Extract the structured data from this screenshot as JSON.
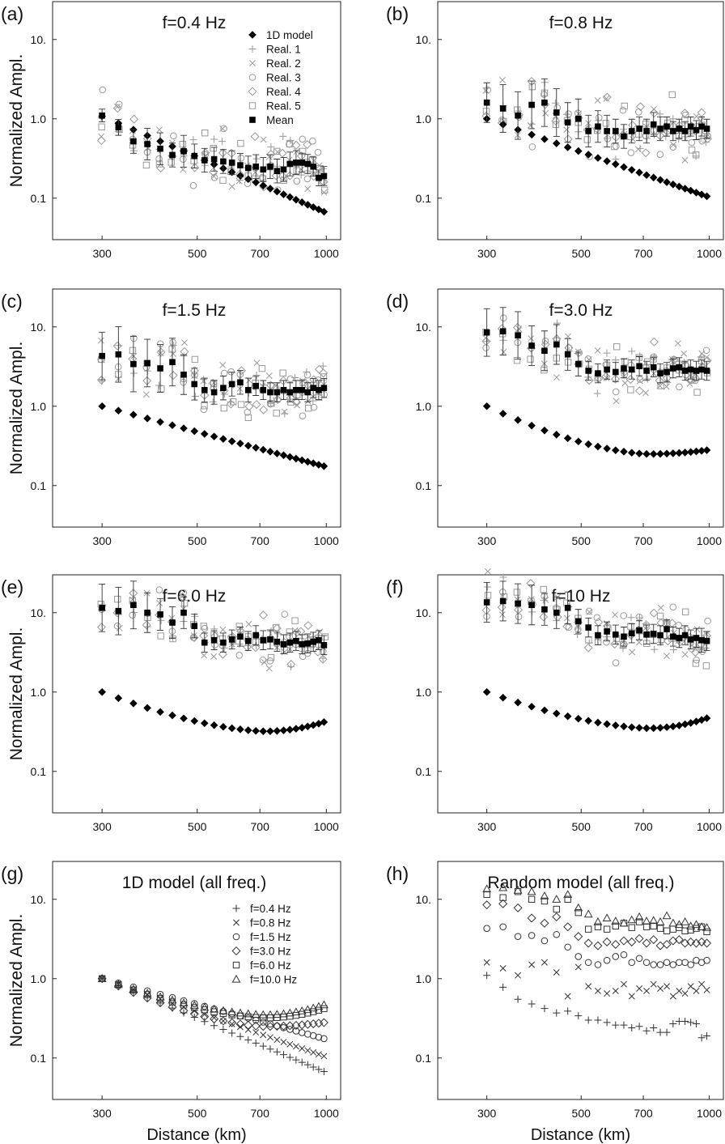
{
  "figure": {
    "ylabel": "Normalized Ampl.",
    "xlabel": "Distance (km)",
    "yticks": [
      "0.1",
      "1.0",
      "10."
    ],
    "xticks": [
      "300",
      "500",
      "700",
      "1000"
    ]
  },
  "chart_data": [
    {
      "type": "scatter",
      "panel_label": "(a)",
      "title": "f=0.4 Hz",
      "xscale": "log",
      "yscale": "log",
      "xlim": [
        230,
        1080
      ],
      "ylim": [
        0.03,
        30
      ],
      "legend": {
        "placement": "top-right",
        "entries": [
          {
            "label": "1D model",
            "marker": "filled-diamond"
          },
          {
            "label": "Real. 1",
            "marker": "plus"
          },
          {
            "label": "Real. 2",
            "marker": "cross"
          },
          {
            "label": "Real. 3",
            "marker": "circle"
          },
          {
            "label": "Real. 4",
            "marker": "diamond"
          },
          {
            "label": "Real. 5",
            "marker": "square"
          },
          {
            "label": "Mean",
            "marker": "filled-square"
          }
        ]
      },
      "series": [
        {
          "name": "1D model",
          "model": [
            1.08,
            0.067
          ]
        },
        {
          "name": "Mean",
          "values": [
            1.1,
            0.78,
            0.52,
            0.48,
            0.42,
            0.35,
            0.39,
            0.34,
            0.3,
            0.31,
            0.29,
            0.28,
            0.26,
            0.24,
            0.25,
            0.23,
            0.25,
            0.22,
            0.23,
            0.27,
            0.28,
            0.28,
            0.27,
            0.25,
            0.18,
            0.19
          ],
          "err": [
            0.08,
            0.1,
            0.15,
            0.2,
            0.2,
            0.15,
            0.2,
            0.15,
            0.15,
            0.15,
            0.15,
            0.15,
            0.15,
            0.15,
            0.15,
            0.15,
            0.15,
            0.15,
            0.15,
            0.15,
            0.15,
            0.12,
            0.12,
            0.12,
            0.1,
            0.12
          ]
        },
        {
          "name": "Real. 1",
          "spread": 0.3
        },
        {
          "name": "Real. 2",
          "spread": 0.3
        },
        {
          "name": "Real. 3",
          "spread": 0.35
        },
        {
          "name": "Real. 4",
          "spread": 0.3
        },
        {
          "name": "Real. 5",
          "spread": 0.3
        }
      ]
    },
    {
      "type": "scatter",
      "panel_label": "(b)",
      "title": "f=0.8 Hz",
      "xscale": "log",
      "yscale": "log",
      "xlim": [
        230,
        1080
      ],
      "ylim": [
        0.03,
        30
      ],
      "series": [
        {
          "name": "1D model",
          "model": [
            1.0,
            0.105
          ]
        },
        {
          "name": "Mean",
          "values": [
            1.6,
            1.35,
            1.1,
            1.5,
            1.6,
            1.2,
            0.9,
            1.0,
            0.7,
            0.8,
            0.7,
            0.7,
            0.6,
            0.7,
            0.75,
            0.7,
            0.85,
            0.75,
            0.8,
            0.7,
            0.75,
            0.7,
            0.8,
            0.72,
            0.8,
            0.75
          ],
          "err": [
            0.25,
            0.3,
            0.3,
            0.3,
            0.3,
            0.3,
            0.25,
            0.25,
            0.2,
            0.2,
            0.2,
            0.15,
            0.15,
            0.15,
            0.15,
            0.15,
            0.15,
            0.15,
            0.12,
            0.12,
            0.12,
            0.12,
            0.12,
            0.12,
            0.12,
            0.12
          ]
        },
        {
          "name": "Real. 1",
          "spread": 0.35
        },
        {
          "name": "Real. 2",
          "spread": 0.35
        },
        {
          "name": "Real. 3",
          "spread": 0.4
        },
        {
          "name": "Real. 4",
          "spread": 0.35
        },
        {
          "name": "Real. 5",
          "spread": 0.35
        }
      ]
    },
    {
      "type": "scatter",
      "panel_label": "(c)",
      "title": "f=1.5 Hz",
      "xscale": "log",
      "yscale": "log",
      "xlim": [
        230,
        1080
      ],
      "ylim": [
        0.03,
        30
      ],
      "series": [
        {
          "name": "1D model",
          "model": [
            1.0,
            0.175
          ]
        },
        {
          "name": "Mean",
          "values": [
            4.3,
            4.5,
            3.4,
            3.5,
            3.0,
            3.6,
            2.5,
            1.9,
            1.6,
            1.5,
            1.7,
            1.9,
            2.0,
            1.6,
            1.8,
            1.6,
            1.5,
            1.5,
            1.6,
            1.5,
            1.6,
            1.6,
            1.5,
            1.7,
            1.6,
            1.7
          ],
          "err": [
            0.3,
            0.35,
            0.35,
            0.3,
            0.3,
            0.3,
            0.25,
            0.2,
            0.15,
            0.15,
            0.15,
            0.15,
            0.15,
            0.15,
            0.12,
            0.12,
            0.12,
            0.12,
            0.12,
            0.12,
            0.12,
            0.12,
            0.12,
            0.12,
            0.12,
            0.12
          ]
        },
        {
          "name": "Real. 1",
          "spread": 0.3
        },
        {
          "name": "Real. 2",
          "spread": 0.3
        },
        {
          "name": "Real. 3",
          "spread": 0.35
        },
        {
          "name": "Real. 4",
          "spread": 0.3
        },
        {
          "name": "Real. 5",
          "spread": 0.3
        }
      ]
    },
    {
      "type": "scatter",
      "panel_label": "(d)",
      "title": "f=3.0 Hz",
      "xscale": "log",
      "yscale": "log",
      "xlim": [
        230,
        1080
      ],
      "ylim": [
        0.03,
        30
      ],
      "series": [
        {
          "name": "1D model",
          "model": [
            1.0,
            0.25,
            0.28
          ]
        },
        {
          "name": "Mean",
          "values": [
            8.5,
            8.8,
            7.8,
            5.8,
            5.0,
            6.0,
            4.5,
            3.4,
            2.8,
            2.6,
            2.9,
            2.7,
            3.0,
            2.9,
            3.2,
            2.8,
            3.1,
            2.6,
            2.7,
            3.0,
            3.1,
            2.8,
            2.9,
            2.8,
            2.9,
            2.8
          ],
          "err": [
            0.3,
            0.3,
            0.3,
            0.25,
            0.25,
            0.25,
            0.2,
            0.15,
            0.12,
            0.12,
            0.12,
            0.12,
            0.12,
            0.12,
            0.12,
            0.12,
            0.12,
            0.12,
            0.12,
            0.12,
            0.12,
            0.12,
            0.12,
            0.12,
            0.12,
            0.12
          ]
        },
        {
          "name": "Real. 1",
          "spread": 0.25
        },
        {
          "name": "Real. 2",
          "spread": 0.3
        },
        {
          "name": "Real. 3",
          "spread": 0.3
        },
        {
          "name": "Real. 4",
          "spread": 0.25
        },
        {
          "name": "Real. 5",
          "spread": 0.25
        }
      ]
    },
    {
      "type": "scatter",
      "panel_label": "(e)",
      "title": "f=6.0 Hz",
      "xscale": "log",
      "yscale": "log",
      "xlim": [
        230,
        1080
      ],
      "ylim": [
        0.03,
        30
      ],
      "series": [
        {
          "name": "1D model",
          "model": [
            1.0,
            0.32,
            0.42
          ]
        },
        {
          "name": "Mean",
          "values": [
            11.5,
            10.5,
            12.5,
            10.0,
            9.5,
            7.5,
            10.0,
            6.8,
            4.2,
            4.5,
            4.2,
            4.6,
            5.0,
            4.4,
            5.2,
            4.5,
            4.6,
            4.3,
            4.0,
            4.2,
            4.4,
            4.0,
            4.1,
            4.3,
            4.5,
            3.9
          ],
          "err": [
            0.3,
            0.3,
            0.3,
            0.25,
            0.2,
            0.2,
            0.2,
            0.15,
            0.12,
            0.12,
            0.12,
            0.12,
            0.12,
            0.12,
            0.12,
            0.12,
            0.12,
            0.12,
            0.12,
            0.12,
            0.12,
            0.12,
            0.12,
            0.12,
            0.12,
            0.12
          ]
        },
        {
          "name": "Real. 1",
          "spread": 0.25
        },
        {
          "name": "Real. 2",
          "spread": 0.3
        },
        {
          "name": "Real. 3",
          "spread": 0.3
        },
        {
          "name": "Real. 4",
          "spread": 0.25
        },
        {
          "name": "Real. 5",
          "spread": 0.25
        }
      ]
    },
    {
      "type": "scatter",
      "panel_label": "(f)",
      "title": "f=10 Hz",
      "xscale": "log",
      "yscale": "log",
      "xlim": [
        230,
        1080
      ],
      "ylim": [
        0.03,
        30
      ],
      "series": [
        {
          "name": "1D model",
          "model": [
            1.0,
            0.35,
            0.47
          ]
        },
        {
          "name": "Mean",
          "values": [
            13.5,
            14.0,
            13.0,
            12.5,
            11.0,
            10.0,
            11.5,
            7.8,
            6.5,
            5.2,
            5.8,
            5.3,
            5.0,
            5.5,
            6.0,
            5.3,
            5.4,
            5.2,
            6.2,
            5.0,
            4.8,
            5.2,
            4.6,
            4.8,
            4.5,
            4.4
          ],
          "err": [
            0.25,
            0.25,
            0.25,
            0.25,
            0.2,
            0.2,
            0.2,
            0.15,
            0.12,
            0.12,
            0.12,
            0.12,
            0.12,
            0.12,
            0.12,
            0.12,
            0.12,
            0.12,
            0.12,
            0.12,
            0.12,
            0.12,
            0.12,
            0.12,
            0.15,
            0.12
          ]
        },
        {
          "name": "Real. 1",
          "spread": 0.25
        },
        {
          "name": "Real. 2",
          "spread": 0.3
        },
        {
          "name": "Real. 3",
          "spread": 0.3
        },
        {
          "name": "Real. 4",
          "spread": 0.25
        },
        {
          "name": "Real. 5",
          "spread": 0.25
        }
      ]
    },
    {
      "type": "scatter",
      "panel_label": "(g)",
      "title": "1D model (all freq.)",
      "xscale": "log",
      "yscale": "log",
      "xlim": [
        230,
        1080
      ],
      "ylim": [
        0.03,
        30
      ],
      "legend": {
        "placement": "top-right",
        "entries": [
          {
            "label": "f=0.4 Hz",
            "marker": "plus"
          },
          {
            "label": "f=0.8 Hz",
            "marker": "cross"
          },
          {
            "label": "f=1.5 Hz",
            "marker": "circle"
          },
          {
            "label": "f=3.0 Hz",
            "marker": "diamond"
          },
          {
            "label": "f=6.0 Hz",
            "marker": "square"
          },
          {
            "label": "f=10.0 Hz",
            "marker": "triangle"
          }
        ]
      },
      "series": [
        {
          "name": "f=0.4 Hz",
          "model": [
            1.0,
            0.067
          ]
        },
        {
          "name": "f=0.8 Hz",
          "model": [
            1.0,
            0.105
          ]
        },
        {
          "name": "f=1.5 Hz",
          "model": [
            1.0,
            0.175
          ]
        },
        {
          "name": "f=3.0 Hz",
          "model": [
            1.0,
            0.25,
            0.28
          ]
        },
        {
          "name": "f=6.0 Hz",
          "model": [
            1.0,
            0.32,
            0.42
          ]
        },
        {
          "name": "f=10.0 Hz",
          "model": [
            1.0,
            0.35,
            0.47
          ]
        }
      ]
    },
    {
      "type": "scatter",
      "panel_label": "(h)",
      "title": "Random model (all freq.)",
      "xscale": "log",
      "yscale": "log",
      "xlim": [
        230,
        1080
      ],
      "ylim": [
        0.03,
        30
      ],
      "series": [
        {
          "name": "f=0.4 Hz",
          "values": [
            1.1,
            0.78,
            0.55,
            0.48,
            0.42,
            0.37,
            0.39,
            0.34,
            0.3,
            0.3,
            0.28,
            0.26,
            0.26,
            0.24,
            0.25,
            0.22,
            0.24,
            0.21,
            0.21,
            0.27,
            0.29,
            0.29,
            0.28,
            0.27,
            0.18,
            0.19
          ]
        },
        {
          "name": "f=0.8 Hz",
          "values": [
            1.6,
            1.35,
            1.1,
            1.5,
            1.6,
            1.2,
            0.6,
            1.4,
            0.8,
            0.7,
            0.65,
            0.7,
            0.85,
            0.6,
            0.75,
            0.7,
            0.85,
            0.75,
            0.8,
            0.6,
            0.7,
            0.65,
            0.8,
            0.7,
            0.85,
            0.72
          ]
        },
        {
          "name": "f=1.5 Hz",
          "values": [
            4.3,
            4.5,
            3.4,
            3.5,
            3.0,
            3.6,
            2.5,
            1.9,
            1.6,
            1.5,
            1.7,
            1.9,
            2.0,
            1.6,
            1.8,
            1.6,
            1.5,
            1.5,
            1.6,
            1.5,
            1.6,
            1.6,
            1.5,
            1.7,
            1.6,
            1.7
          ]
        },
        {
          "name": "f=3.0 Hz",
          "values": [
            8.5,
            8.8,
            7.8,
            5.8,
            5.0,
            6.0,
            4.5,
            3.4,
            2.8,
            2.6,
            2.9,
            2.7,
            3.0,
            2.9,
            3.2,
            2.8,
            3.1,
            2.6,
            2.7,
            3.0,
            3.1,
            2.8,
            2.9,
            2.8,
            2.9,
            2.8
          ]
        },
        {
          "name": "f=6.0 Hz",
          "values": [
            11.5,
            10.5,
            12.5,
            10.0,
            9.5,
            7.5,
            10.0,
            6.8,
            4.2,
            4.5,
            4.2,
            4.6,
            5.0,
            4.4,
            5.2,
            4.5,
            4.6,
            4.3,
            4.0,
            4.2,
            4.4,
            4.0,
            4.1,
            4.3,
            4.5,
            3.9
          ]
        },
        {
          "name": "f=10.0 Hz",
          "values": [
            13.5,
            14.0,
            13.0,
            12.5,
            11.0,
            10.0,
            11.5,
            7.8,
            6.5,
            5.2,
            5.8,
            5.3,
            5.0,
            5.5,
            6.0,
            5.3,
            5.4,
            5.2,
            6.2,
            5.0,
            4.8,
            5.2,
            4.6,
            4.8,
            4.5,
            4.4
          ]
        }
      ]
    }
  ]
}
